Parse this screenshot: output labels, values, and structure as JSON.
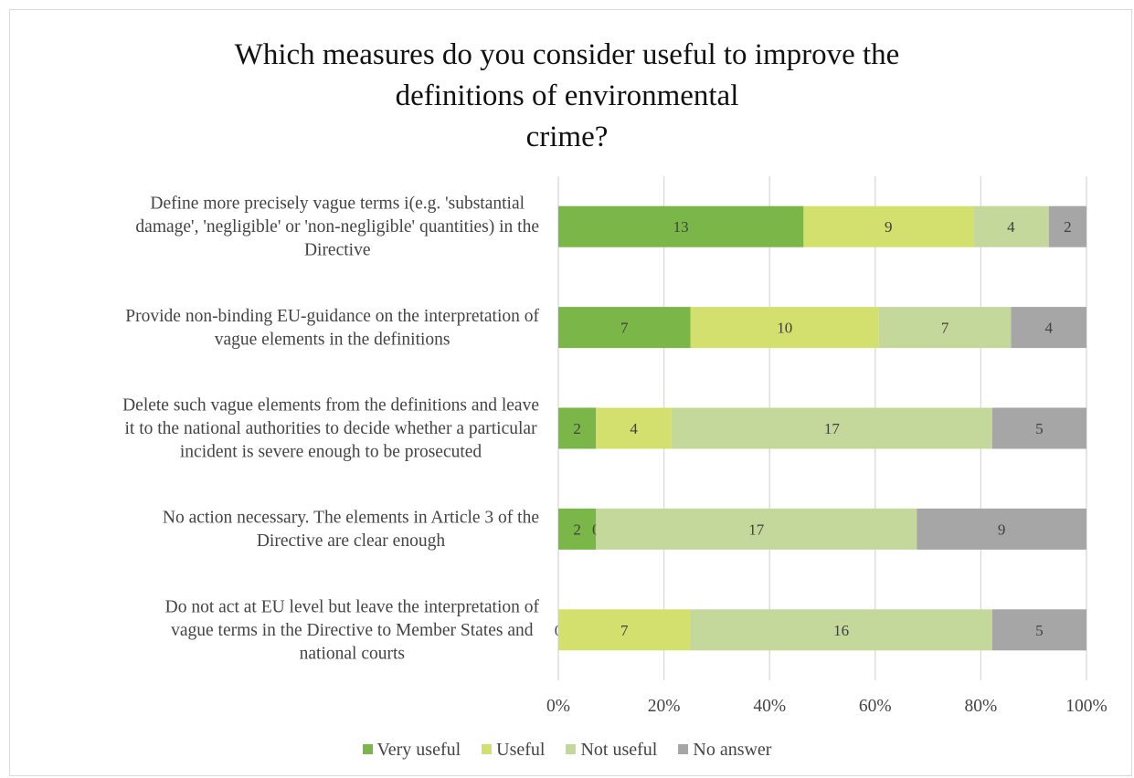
{
  "chart_data": {
    "type": "bar",
    "orientation": "horizontal",
    "stacked": "percent",
    "title_lines": [
      "Which measures do you consider useful to improve the",
      "definitions of environmental",
      "crime?"
    ],
    "categories": [
      [
        "Define more precisely vague terms i(e.g. 'substantial",
        "damage', 'negligible' or 'non-negligible' quantities) in the",
        "Directive"
      ],
      [
        "Provide non-binding EU-guidance on the interpretation of",
        "vague elements in the definitions"
      ],
      [
        "Delete such vague elements from the definitions and leave",
        "it to the national authorities to decide whether a particular",
        "incident is severe enough to be prosecuted"
      ],
      [
        "No action necessary. The elements in Article 3 of the",
        "Directive are clear enough"
      ],
      [
        "Do not act at EU level but leave the interpretation of",
        "vague terms in the Directive to Member States and",
        "national courts"
      ]
    ],
    "series": [
      {
        "name": "Very useful",
        "color": "#7ab648",
        "values": [
          13,
          7,
          2,
          2,
          0
        ]
      },
      {
        "name": "Useful",
        "color": "#d4e06e",
        "values": [
          9,
          10,
          4,
          0,
          7
        ]
      },
      {
        "name": "Not useful",
        "color": "#c5d89c",
        "values": [
          4,
          7,
          17,
          17,
          16
        ]
      },
      {
        "name": "No answer",
        "color": "#a6a6a6",
        "values": [
          2,
          4,
          5,
          9,
          5
        ]
      }
    ],
    "x_ticks": [
      "0%",
      "20%",
      "40%",
      "60%",
      "80%",
      "100%"
    ],
    "xlim": [
      0,
      100
    ],
    "grid": true,
    "legend_position": "bottom"
  }
}
